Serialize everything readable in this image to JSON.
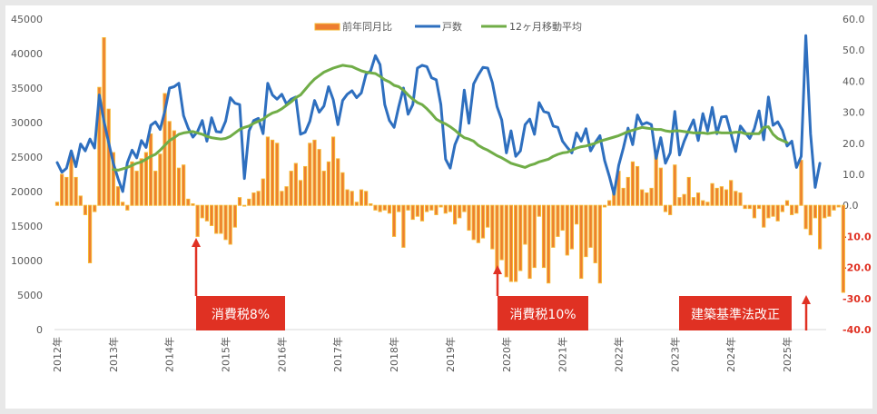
{
  "chart_data": {
    "type": "bar+line",
    "title": "",
    "legend": {
      "placement": "top-center",
      "entries": [
        {
          "name": "前年同月比",
          "type": "bar",
          "color": "#ed7d31",
          "border": "#f5b731"
        },
        {
          "name": "戸数",
          "type": "line",
          "color": "#2e6fbf"
        },
        {
          "name": "12ヶ月移動平均",
          "type": "line",
          "color": "#70ad47"
        }
      ]
    },
    "left_axis": {
      "min": 0,
      "max": 45000,
      "step": 5000,
      "ticks": [
        "0",
        "5000",
        "10000",
        "15000",
        "20000",
        "25000",
        "30000",
        "35000",
        "40000",
        "45000"
      ]
    },
    "right_axis": {
      "min": -40,
      "max": 60,
      "step": 10,
      "ticks": [
        "-40.0",
        "-30.0",
        "-20.0",
        "-10.0",
        "0.0",
        "10.0",
        "20.0",
        "30.0",
        "40.0",
        "50.0",
        "60.0"
      ],
      "negative_color": "#e03123"
    },
    "x_ticks": [
      "2012年",
      "2013年",
      "2014年",
      "2015年",
      "2016年",
      "2017年",
      "2018年",
      "2019年",
      "2020年",
      "2021年",
      "2022年",
      "2023年",
      "2024年",
      "2025年"
    ],
    "x_start": "2012-01",
    "frequency": "monthly",
    "series": [
      {
        "name": "戸数",
        "axis": "left",
        "values": [
          24200,
          22800,
          23400,
          25900,
          23600,
          26900,
          25900,
          27600,
          26300,
          34000,
          30200,
          27100,
          24100,
          21900,
          20000,
          24200,
          26000,
          24900,
          27400,
          26400,
          29600,
          30100,
          29000,
          31600,
          35000,
          35200,
          35700,
          31000,
          29200,
          27900,
          28700,
          30300,
          27300,
          30700,
          28700,
          28600,
          30200,
          33600,
          32800,
          32600,
          21900,
          28800,
          30300,
          30600,
          28400,
          35700,
          34000,
          33400,
          34100,
          32700,
          33400,
          33700,
          28300,
          28600,
          30200,
          33200,
          31500,
          32400,
          35200,
          33300,
          29700,
          33200,
          34100,
          34600,
          33600,
          34300,
          37000,
          37500,
          39700,
          38400,
          32600,
          30300,
          29300,
          32300,
          35000,
          31200,
          32600,
          37900,
          38300,
          38100,
          36500,
          36200,
          32600,
          24700,
          23400,
          26800,
          28400,
          34700,
          29900,
          35600,
          36900,
          38000,
          37900,
          35800,
          32300,
          30400,
          25600,
          28800,
          25100,
          25900,
          29700,
          30500,
          28300,
          32900,
          31600,
          31400,
          29500,
          29300,
          27300,
          26400,
          25600,
          28500,
          27300,
          29100,
          25900,
          27100,
          28100,
          24500,
          22200,
          19600,
          23800,
          26300,
          29200,
          26800,
          31100,
          29700,
          30000,
          29700,
          24800,
          27800,
          24100,
          25600,
          31600,
          25300,
          27300,
          28900,
          30400,
          27400,
          31300,
          28800,
          32200,
          28400,
          30800,
          30900,
          28400,
          25800,
          29500,
          28600,
          27700,
          29100,
          31700,
          27500,
          33700,
          29600,
          30100,
          28900,
          26600,
          27300,
          23500,
          25100,
          42600,
          28400,
          20600,
          24100
        ],
        "color": "#2e6fbf"
      },
      {
        "name": "12ヶ月移動平均",
        "axis": "left",
        "start_index": 12,
        "values": [
          23200,
          23100,
          23300,
          23500,
          23800,
          24100,
          24300,
          24700,
          25100,
          25400,
          26000,
          26700,
          27400,
          27800,
          28300,
          28500,
          28600,
          28700,
          28500,
          28300,
          28000,
          27800,
          27700,
          27600,
          27700,
          28000,
          28500,
          29000,
          29300,
          29500,
          29900,
          30200,
          30500,
          31000,
          31400,
          31600,
          32000,
          32500,
          33000,
          33600,
          34000,
          34800,
          35600,
          36300,
          36800,
          37300,
          37600,
          37900,
          38100,
          38300,
          38200,
          38100,
          37800,
          37500,
          37300,
          37200,
          37100,
          36700,
          36200,
          35900,
          35400,
          35200,
          34700,
          34000,
          33400,
          32900,
          32600,
          32000,
          31300,
          30500,
          30100,
          29800,
          29400,
          28900,
          28300,
          27800,
          27600,
          27300,
          26700,
          26300,
          26000,
          25600,
          25200,
          24900,
          24500,
          24100,
          23900,
          23700,
          23500,
          23800,
          24000,
          24300,
          24500,
          24700,
          25100,
          25400,
          25600,
          25700,
          26000,
          26300,
          26500,
          26600,
          26800,
          27000,
          27300,
          27500,
          27700,
          27900,
          28100,
          28400,
          28700,
          28900,
          29100,
          29300,
          29200,
          29100,
          29000,
          29000,
          28800,
          28700,
          28800,
          28800,
          28700,
          28600,
          28500,
          28500,
          28500,
          28400,
          28500,
          28600,
          28500,
          28500,
          28500,
          28600,
          28600,
          28400,
          28400,
          28400,
          28400,
          29300,
          29400,
          28300,
          27700,
          27400,
          27100
        ],
        "color": "#70ad47"
      },
      {
        "name": "前年同月比",
        "axis": "right",
        "values": [
          1.0,
          10.0,
          9.0,
          17.0,
          9.0,
          3.0,
          -3.0,
          -18.5,
          -2.0,
          38.0,
          54.0,
          31.0,
          17.0,
          6.0,
          1.0,
          -1.5,
          14.0,
          11.0,
          15.0,
          17.0,
          23.0,
          11.0,
          16.5,
          36.0,
          27.0,
          24.0,
          12.0,
          13.0,
          2.0,
          0.5,
          -10.0,
          -4.0,
          -5.0,
          -6.5,
          -9.0,
          -9.0,
          -11.0,
          -12.5,
          -7.0,
          2.5,
          0,
          2.0,
          4.0,
          4.5,
          8.5,
          22.0,
          21.0,
          20.0,
          4.5,
          6.0,
          11.0,
          13.5,
          8.0,
          12.5,
          20.0,
          21.0,
          18.0,
          11.0,
          14.0,
          22.0,
          15.0,
          10.5,
          5.0,
          4.5,
          1.0,
          5.0,
          4.5,
          0.5,
          -1.5,
          -2.0,
          -1.5,
          -2.5,
          -10.0,
          -2.0,
          -13.5,
          -1.5,
          -4.5,
          -3.5,
          -5.0,
          -2.0,
          -1.5,
          -3.0,
          -0.5,
          -2.5,
          -2.0,
          -6.0,
          -4.0,
          -2.0,
          -8.0,
          -11.0,
          -12.0,
          -10.5,
          -7.0,
          -14.0,
          -22.0,
          -17.5,
          -23.0,
          -24.5,
          -24.5,
          -21.0,
          -12.5,
          -23.5,
          -20.0,
          -3.5,
          -20.0,
          -25.0,
          -13.5,
          -10.0,
          -8.0,
          -16.0,
          -14.0,
          -6.0,
          -23.5,
          -16.5,
          -13.5,
          -18.5,
          -25.0,
          -0.5,
          1.5,
          4.5,
          11.0,
          5.5,
          9.0,
          14.0,
          12.5,
          5.0,
          4.0,
          5.5,
          16.5,
          12.0,
          -2.0,
          -3.0,
          13.0,
          2.5,
          3.5,
          9.0,
          2.5,
          4.0,
          1.5,
          1.0,
          7.0,
          5.5,
          6.0,
          5.0,
          8.0,
          4.5,
          4.0,
          -1.0,
          -1.0,
          -4.0,
          -1.0,
          -7.0,
          -4.0,
          -3.5,
          -5.0,
          -2.0,
          1.5,
          -3.0,
          -2.5,
          14.5,
          -7.5,
          -9.5,
          -4.0,
          -14.0,
          -4.0,
          -3.5,
          -1.5,
          -0.5,
          -28.0
        ],
        "color": "#ed7d31"
      }
    ],
    "annotations": [
      {
        "text": "消費税8%",
        "date": "2014-04",
        "color": "#e03123"
      },
      {
        "text": "消費税10%",
        "date": "2019-10",
        "color": "#e03123"
      },
      {
        "text": "建築基準法改正",
        "date": "2025-04",
        "color": "#e03123"
      }
    ]
  }
}
